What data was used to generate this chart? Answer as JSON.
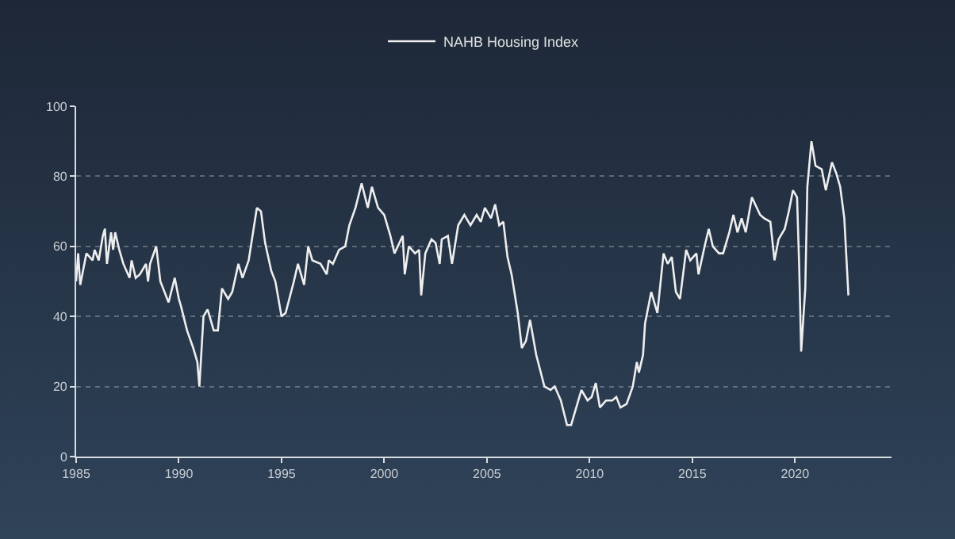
{
  "chart_data": {
    "type": "line",
    "legend": "top",
    "grid": "y",
    "marker": "none",
    "line_style": "solid",
    "xlim": [
      1985,
      2024.7
    ],
    "xticks": [
      1985,
      1990,
      1995,
      2000,
      2005,
      2010,
      2015,
      2020
    ],
    "ylim": [
      0,
      100
    ],
    "yticks": [
      0,
      20,
      40,
      60,
      80,
      100
    ],
    "series": [
      {
        "name": "NAHB Housing Index",
        "color": "#eeeeee",
        "x": [
          1985.0,
          1985.1,
          1985.2,
          1985.5,
          1985.8,
          1985.9,
          1986.1,
          1986.3,
          1986.4,
          1986.5,
          1986.7,
          1986.8,
          1986.9,
          1987.1,
          1987.3,
          1987.6,
          1987.7,
          1987.9,
          1988.1,
          1988.4,
          1988.5,
          1988.6,
          1988.9,
          1989.1,
          1989.5,
          1989.8,
          1990.0,
          1990.1,
          1990.4,
          1990.7,
          1990.9,
          1991.0,
          1991.2,
          1991.4,
          1991.7,
          1991.9,
          1992.1,
          1992.4,
          1992.6,
          1992.9,
          1993.1,
          1993.4,
          1993.8,
          1994.0,
          1994.2,
          1994.5,
          1994.7,
          1995.0,
          1995.2,
          1995.6,
          1995.8,
          1996.1,
          1996.3,
          1996.5,
          1996.9,
          1997.2,
          1997.3,
          1997.5,
          1997.8,
          1998.1,
          1998.3,
          1998.6,
          1998.9,
          1999.2,
          1999.4,
          1999.7,
          2000.0,
          2000.3,
          2000.5,
          2000.9,
          2001.0,
          2001.2,
          2001.5,
          2001.7,
          2001.8,
          2002.0,
          2002.3,
          2002.5,
          2002.7,
          2002.8,
          2003.1,
          2003.3,
          2003.6,
          2003.9,
          2004.2,
          2004.5,
          2004.7,
          2004.9,
          2005.2,
          2005.4,
          2005.6,
          2005.8,
          2006.0,
          2006.2,
          2006.5,
          2006.7,
          2006.9,
          2007.1,
          2007.4,
          2007.8,
          2008.1,
          2008.3,
          2008.6,
          2008.9,
          2009.1,
          2009.4,
          2009.6,
          2009.9,
          2010.1,
          2010.3,
          2010.5,
          2010.8,
          2011.1,
          2011.3,
          2011.5,
          2011.8,
          2012.1,
          2012.3,
          2012.4,
          2012.6,
          2012.7,
          2013.0,
          2013.3,
          2013.6,
          2013.8,
          2014.0,
          2014.2,
          2014.4,
          2014.7,
          2014.9,
          2015.2,
          2015.3,
          2015.6,
          2015.8,
          2016.0,
          2016.3,
          2016.5,
          2016.8,
          2017.0,
          2017.2,
          2017.4,
          2017.6,
          2017.9,
          2018.3,
          2018.5,
          2018.8,
          2019.0,
          2019.2,
          2019.5,
          2019.7,
          2019.9,
          2020.1,
          2020.2,
          2020.3,
          2020.5,
          2020.6,
          2020.8,
          2021.0,
          2021.3,
          2021.5,
          2021.8,
          2022.0,
          2022.2,
          2022.4,
          2022.5,
          2022.6
        ],
        "values": [
          50,
          58,
          49,
          58,
          56,
          59,
          56,
          63,
          65,
          55,
          64,
          59,
          64,
          59,
          55,
          51,
          56,
          51,
          52,
          55,
          50,
          55,
          60,
          50,
          44,
          51,
          45,
          43,
          36,
          31,
          27,
          20,
          40,
          42,
          36,
          36,
          48,
          45,
          47,
          55,
          51,
          56,
          71,
          70,
          61,
          53,
          50,
          40,
          41,
          50,
          55,
          49,
          60,
          56,
          55,
          52,
          56,
          55,
          59,
          60,
          66,
          71,
          78,
          71,
          77,
          71,
          69,
          63,
          58,
          63,
          52,
          60,
          58,
          59,
          46,
          58,
          62,
          61,
          55,
          62,
          63,
          55,
          66,
          69,
          66,
          69,
          67,
          71,
          68,
          72,
          66,
          67,
          57,
          52,
          41,
          31,
          33,
          39,
          29,
          20,
          19,
          20,
          16,
          9,
          9,
          15,
          19,
          16,
          17,
          21,
          14,
          16,
          16,
          17,
          14,
          15,
          20,
          27,
          24,
          29,
          38,
          47,
          41,
          58,
          55,
          57,
          47,
          45,
          59,
          56,
          58,
          52,
          60,
          65,
          60,
          58,
          58,
          64,
          69,
          64,
          68,
          64,
          74,
          69,
          68,
          67,
          56,
          62,
          65,
          70,
          76,
          74,
          55,
          30,
          48,
          77,
          90,
          83,
          82,
          76,
          84,
          81,
          77,
          68,
          57,
          46
        ]
      }
    ]
  }
}
